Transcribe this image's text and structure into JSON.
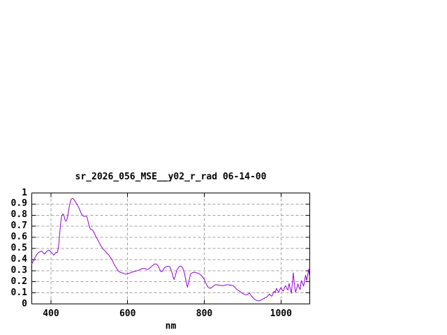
{
  "colors": {
    "line": "#9400d3",
    "grid": "#a0a0a0",
    "axis": "#000000",
    "background": "#ffffff",
    "text": "#000000"
  },
  "chart_data": {
    "type": "line",
    "title": "sr_2026_056_MSE__y02_r_rad 06-14-00",
    "xlabel": "nm",
    "ylabel": "",
    "grid": true,
    "legend": "none",
    "x_axis": {
      "label": "nm",
      "range": [
        350,
        1075
      ],
      "ticks": [
        {
          "value": 400,
          "label": "400"
        },
        {
          "value": 600,
          "label": "600"
        },
        {
          "value": 800,
          "label": "800"
        },
        {
          "value": 1000,
          "label": "1000"
        }
      ]
    },
    "y_axis": {
      "label": "",
      "range": [
        0,
        1
      ],
      "ticks": [
        {
          "value": 0,
          "label": "0"
        },
        {
          "value": 0.1,
          "label": "0.1"
        },
        {
          "value": 0.2,
          "label": "0.2"
        },
        {
          "value": 0.3,
          "label": "0.3"
        },
        {
          "value": 0.4,
          "label": "0.4"
        },
        {
          "value": 0.5,
          "label": "0.5"
        },
        {
          "value": 0.6,
          "label": "0.6"
        },
        {
          "value": 0.7,
          "label": "0.7"
        },
        {
          "value": 0.8,
          "label": "0.8"
        },
        {
          "value": 0.9,
          "label": "0.9"
        },
        {
          "value": 1,
          "label": "1"
        }
      ]
    },
    "series": [
      {
        "name": "sr_2026_056_MSE__y02_r_rad",
        "color": "#9400d3",
        "points": [
          [
            350,
            0.36
          ],
          [
            353,
            0.38
          ],
          [
            356,
            0.4
          ],
          [
            359,
            0.42
          ],
          [
            362,
            0.44
          ],
          [
            365,
            0.455
          ],
          [
            368,
            0.465
          ],
          [
            371,
            0.47
          ],
          [
            374,
            0.475
          ],
          [
            377,
            0.475
          ],
          [
            380,
            0.46
          ],
          [
            383,
            0.45
          ],
          [
            386,
            0.46
          ],
          [
            389,
            0.475
          ],
          [
            392,
            0.48
          ],
          [
            395,
            0.485
          ],
          [
            398,
            0.475
          ],
          [
            401,
            0.465
          ],
          [
            404,
            0.455
          ],
          [
            407,
            0.44
          ],
          [
            410,
            0.45
          ],
          [
            413,
            0.465
          ],
          [
            416,
            0.46
          ],
          [
            419,
            0.5
          ],
          [
            421,
            0.56
          ],
          [
            423,
            0.64
          ],
          [
            425,
            0.72
          ],
          [
            427,
            0.775
          ],
          [
            429,
            0.8
          ],
          [
            431,
            0.81
          ],
          [
            433,
            0.805
          ],
          [
            435,
            0.78
          ],
          [
            437,
            0.755
          ],
          [
            439,
            0.745
          ],
          [
            441,
            0.755
          ],
          [
            443,
            0.78
          ],
          [
            445,
            0.82
          ],
          [
            447,
            0.86
          ],
          [
            449,
            0.895
          ],
          [
            451,
            0.925
          ],
          [
            453,
            0.945
          ],
          [
            455,
            0.95
          ],
          [
            457,
            0.95
          ],
          [
            459,
            0.945
          ],
          [
            461,
            0.935
          ],
          [
            464,
            0.92
          ],
          [
            467,
            0.9
          ],
          [
            470,
            0.885
          ],
          [
            473,
            0.865
          ],
          [
            476,
            0.84
          ],
          [
            479,
            0.815
          ],
          [
            482,
            0.8
          ],
          [
            485,
            0.79
          ],
          [
            488,
            0.79
          ],
          [
            491,
            0.79
          ],
          [
            494,
            0.785
          ],
          [
            497,
            0.74
          ],
          [
            500,
            0.7
          ],
          [
            503,
            0.675
          ],
          [
            506,
            0.67
          ],
          [
            509,
            0.665
          ],
          [
            512,
            0.645
          ],
          [
            515,
            0.625
          ],
          [
            518,
            0.6
          ],
          [
            521,
            0.585
          ],
          [
            524,
            0.565
          ],
          [
            527,
            0.545
          ],
          [
            530,
            0.525
          ],
          [
            533,
            0.51
          ],
          [
            536,
            0.495
          ],
          [
            539,
            0.485
          ],
          [
            542,
            0.475
          ],
          [
            545,
            0.46
          ],
          [
            548,
            0.45
          ],
          [
            551,
            0.44
          ],
          [
            554,
            0.425
          ],
          [
            557,
            0.41
          ],
          [
            560,
            0.395
          ],
          [
            563,
            0.37
          ],
          [
            566,
            0.35
          ],
          [
            569,
            0.335
          ],
          [
            572,
            0.315
          ],
          [
            575,
            0.3
          ],
          [
            578,
            0.29
          ],
          [
            581,
            0.285
          ],
          [
            584,
            0.28
          ],
          [
            587,
            0.28
          ],
          [
            590,
            0.275
          ],
          [
            593,
            0.27
          ],
          [
            596,
            0.27
          ],
          [
            600,
            0.272
          ],
          [
            605,
            0.278
          ],
          [
            610,
            0.285
          ],
          [
            615,
            0.29
          ],
          [
            620,
            0.295
          ],
          [
            625,
            0.3
          ],
          [
            630,
            0.305
          ],
          [
            635,
            0.315
          ],
          [
            640,
            0.32
          ],
          [
            645,
            0.32
          ],
          [
            650,
            0.31
          ],
          [
            655,
            0.315
          ],
          [
            660,
            0.33
          ],
          [
            665,
            0.345
          ],
          [
            670,
            0.36
          ],
          [
            675,
            0.36
          ],
          [
            680,
            0.34
          ],
          [
            685,
            0.3
          ],
          [
            688,
            0.29
          ],
          [
            692,
            0.3
          ],
          [
            696,
            0.325
          ],
          [
            700,
            0.335
          ],
          [
            705,
            0.34
          ],
          [
            710,
            0.335
          ],
          [
            714,
            0.3
          ],
          [
            718,
            0.25
          ],
          [
            721,
            0.22
          ],
          [
            724,
            0.25
          ],
          [
            728,
            0.3
          ],
          [
            732,
            0.325
          ],
          [
            736,
            0.34
          ],
          [
            740,
            0.34
          ],
          [
            744,
            0.32
          ],
          [
            748,
            0.28
          ],
          [
            752,
            0.21
          ],
          [
            756,
            0.15
          ],
          [
            760,
            0.21
          ],
          [
            764,
            0.27
          ],
          [
            768,
            0.28
          ],
          [
            772,
            0.285
          ],
          [
            776,
            0.285
          ],
          [
            780,
            0.28
          ],
          [
            785,
            0.275
          ],
          [
            790,
            0.265
          ],
          [
            795,
            0.245
          ],
          [
            800,
            0.22
          ],
          [
            805,
            0.18
          ],
          [
            810,
            0.15
          ],
          [
            815,
            0.14
          ],
          [
            820,
            0.15
          ],
          [
            825,
            0.165
          ],
          [
            830,
            0.175
          ],
          [
            835,
            0.17
          ],
          [
            840,
            0.17
          ],
          [
            845,
            0.165
          ],
          [
            850,
            0.165
          ],
          [
            855,
            0.17
          ],
          [
            860,
            0.175
          ],
          [
            865,
            0.17
          ],
          [
            870,
            0.17
          ],
          [
            875,
            0.165
          ],
          [
            880,
            0.15
          ],
          [
            885,
            0.13
          ],
          [
            890,
            0.12
          ],
          [
            895,
            0.105
          ],
          [
            900,
            0.095
          ],
          [
            905,
            0.085
          ],
          [
            910,
            0.082
          ],
          [
            915,
            0.09
          ],
          [
            918,
            0.1
          ],
          [
            922,
            0.075
          ],
          [
            926,
            0.06
          ],
          [
            930,
            0.045
          ],
          [
            934,
            0.035
          ],
          [
            938,
            0.03
          ],
          [
            942,
            0.028
          ],
          [
            946,
            0.03
          ],
          [
            950,
            0.04
          ],
          [
            954,
            0.045
          ],
          [
            958,
            0.055
          ],
          [
            962,
            0.06
          ],
          [
            966,
            0.075
          ],
          [
            970,
            0.09
          ],
          [
            973,
            0.075
          ],
          [
            976,
            0.07
          ],
          [
            979,
            0.09
          ],
          [
            982,
            0.115
          ],
          [
            985,
            0.1
          ],
          [
            988,
            0.14
          ],
          [
            991,
            0.12
          ],
          [
            994,
            0.105
          ],
          [
            997,
            0.13
          ],
          [
            1000,
            0.148
          ],
          [
            1003,
            0.125
          ],
          [
            1006,
            0.115
          ],
          [
            1009,
            0.15
          ],
          [
            1012,
            0.165
          ],
          [
            1015,
            0.14
          ],
          [
            1018,
            0.125
          ],
          [
            1021,
            0.185
          ],
          [
            1024,
            0.14
          ],
          [
            1027,
            0.095
          ],
          [
            1030,
            0.2
          ],
          [
            1032,
            0.28
          ],
          [
            1035,
            0.18
          ],
          [
            1038,
            0.105
          ],
          [
            1041,
            0.14
          ],
          [
            1044,
            0.18
          ],
          [
            1047,
            0.15
          ],
          [
            1050,
            0.13
          ],
          [
            1053,
            0.21
          ],
          [
            1056,
            0.185
          ],
          [
            1059,
            0.16
          ],
          [
            1062,
            0.22
          ],
          [
            1064,
            0.26
          ],
          [
            1067,
            0.21
          ],
          [
            1070,
            0.27
          ],
          [
            1072,
            0.315
          ],
          [
            1074,
            0.26
          ],
          [
            1075,
            0.24
          ]
        ]
      }
    ]
  }
}
